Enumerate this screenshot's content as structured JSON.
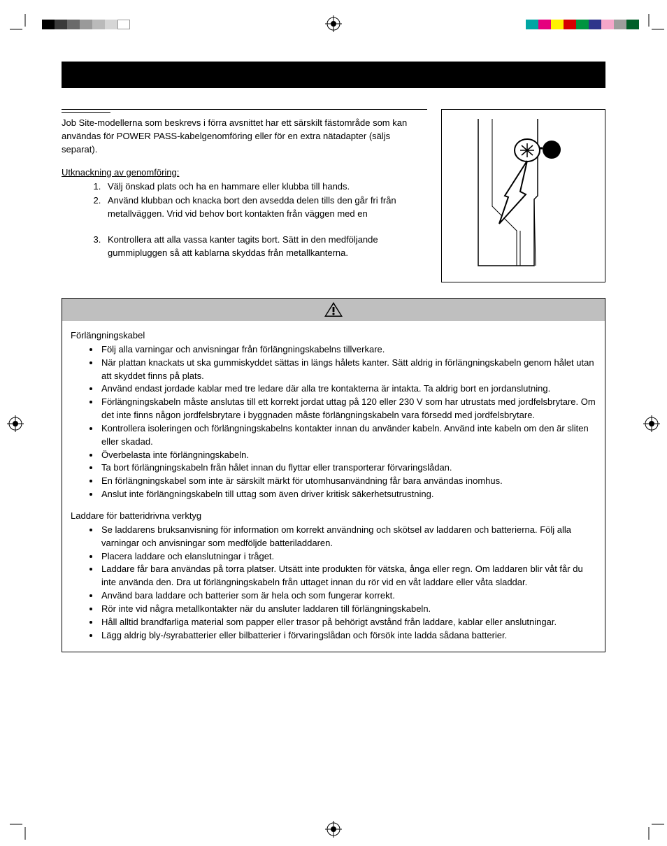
{
  "colors": {
    "topLeftBar": [
      "#000000",
      "#3a3a3a",
      "#6a6a6a",
      "#9a9a9a",
      "#bababa",
      "#d6d6d6",
      "#ffffff"
    ],
    "topRightBar": [
      "#00a6a3",
      "#e5007e",
      "#fff200",
      "#d60000",
      "#009540",
      "#2f358b",
      "#f5a6c9",
      "#9d9d9c",
      "#005f28"
    ]
  },
  "intro": {
    "paragraph": "Job Site-modellerna som beskrevs i förra avsnittet har ett särskilt fästområde som kan användas för POWER PASS-kabelgenomföring eller för en extra nätadapter (säljs separat).",
    "subheading": "Utknackning av genomföring:",
    "steps": [
      "Välj önskad plats och ha en hammare eller klubba till hands.",
      "Använd klubban och knacka bort den avsedda delen tills den går fri från metallväggen. Vrid vid behov bort kontakten från väggen med en",
      "Kontrollera att alla vassa kanter tagits bort. Sätt in den medföljande gummipluggen så att kablarna skyddas från metallkanterna."
    ]
  },
  "warning": {
    "section1": {
      "title": "Förlängningskabel",
      "items": [
        "Följ alla varningar och anvisningar från förlängningskabelns tillverkare.",
        "När plattan knackats ut ska gummiskyddet sättas in längs hålets kanter.  Sätt aldrig in förlängningskabeln genom hålet utan att skyddet finns på plats.",
        "Använd endast jordade kablar med tre ledare där alla tre kontakterna är intakta.  Ta aldrig bort en jordanslutning.",
        "Förlängningskabeln måste anslutas till ett korrekt jordat uttag på 120 eller 230 V som har utrustats med jordfelsbrytare. Om det inte finns någon jordfelsbrytare i byggnaden måste förlängningskabeln vara försedd med jordfelsbrytare.",
        "Kontrollera isoleringen och förlängningskabelns kontakter innan du använder kabeln.  Använd inte kabeln om den är sliten eller skadad.",
        "Överbelasta inte förlängningskabeln.",
        "Ta bort förlängningskabeln från hålet innan du flyttar eller transporterar förvaringslådan.",
        "En förlängningskabel som inte är särskilt märkt för utomhusanvändning får bara användas inomhus.",
        "Anslut inte förlängningskabeln till uttag som även driver kritisk säkerhetsutrustning."
      ]
    },
    "section2": {
      "title": "Laddare för batteridrivna verktyg",
      "items": [
        "Se laddarens bruksanvisning för information om korrekt användning och skötsel av laddaren och batterierna.  Följ alla varningar och anvisningar som medföljde batteriladdaren.",
        "Placera laddare och elanslutningar i tråget.",
        "Laddare får bara användas på torra platser.  Utsätt inte produkten för vätska, ånga eller regn.  Om laddaren blir våt får du inte använda den.  Dra ut förlängningskabeln från uttaget innan du rör vid en våt laddare eller våta sladdar.",
        "Använd bara laddare och batterier som är hela och som fungerar korrekt.",
        "Rör inte vid några metallkontakter när du ansluter laddaren till förlängningskabeln.",
        "Håll alltid brandfarliga material som papper eller trasor på behörigt avstånd från laddare, kablar eller anslutningar.",
        "Lägg aldrig bly-/syrabatterier eller bilbatterier i förvaringslådan och försök inte ladda sådana batterier."
      ]
    }
  }
}
